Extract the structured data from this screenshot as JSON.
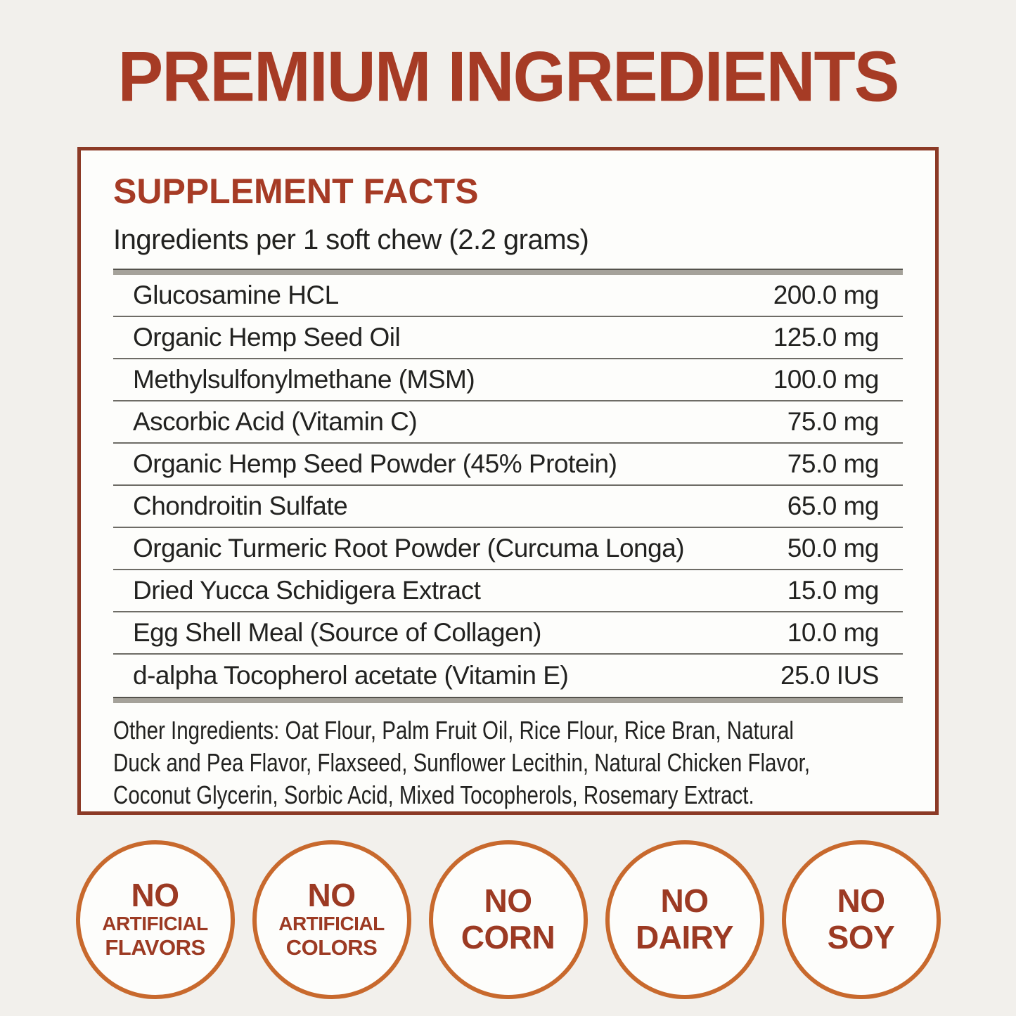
{
  "page": {
    "title": "PREMIUM INGREDIENTS"
  },
  "panel": {
    "heading": "SUPPLEMENT FACTS",
    "serving_line": "Ingredients per 1 soft chew (2.2 grams)",
    "ingredients": [
      {
        "name": "Glucosamine HCL",
        "amount": "200.0 mg"
      },
      {
        "name": "Organic Hemp Seed Oil",
        "amount": "125.0 mg"
      },
      {
        "name": "Methylsulfonylmethane (MSM)",
        "amount": "100.0 mg"
      },
      {
        "name": "Ascorbic Acid (Vitamin C)",
        "amount": "75.0 mg"
      },
      {
        "name": "Organic Hemp Seed Powder (45% Protein)",
        "amount": "75.0 mg"
      },
      {
        "name": "Chondroitin Sulfate",
        "amount": "65.0 mg"
      },
      {
        "name": "Organic Turmeric Root Powder (Curcuma Longa)",
        "amount": "50.0 mg"
      },
      {
        "name": "Dried Yucca Schidigera Extract",
        "amount": "15.0 mg"
      },
      {
        "name": "Egg Shell Meal (Source of Collagen)",
        "amount": "10.0 mg"
      },
      {
        "name": "d-alpha Tocopherol acetate (Vitamin E)",
        "amount": "25.0 IUS"
      }
    ],
    "other_ingredients_lines": [
      "Other Ingredients: Oat Flour, Palm Fruit Oil, Rice Flour, Rice Bran, Natural",
      "Duck and Pea Flavor, Flaxseed, Sunflower Lecithin, Natural Chicken Flavor,",
      "Coconut Glycerin, Sorbic Acid, Mixed Tocopherols, Rosemary Extract."
    ]
  },
  "badges": [
    {
      "lines": [
        "NO",
        "ARTIFICIAL",
        "FLAVORS"
      ]
    },
    {
      "lines": [
        "NO",
        "ARTIFICIAL",
        "COLORS"
      ]
    },
    {
      "lines": [
        "NO",
        "CORN"
      ]
    },
    {
      "lines": [
        "NO",
        "DAIRY"
      ]
    },
    {
      "lines": [
        "NO",
        "SOY"
      ]
    }
  ],
  "colors": {
    "background": "#f2f0ec",
    "panel_background": "#fdfdfb",
    "title_red": "#a63b25",
    "panel_border_brown": "#8c3a26",
    "table_text": "#222220",
    "thick_rule_gray": "#a5a29a",
    "thin_rule_gray": "#6e6c66",
    "badge_ring_orange": "#c8692d",
    "badge_text_red": "#9c3a23"
  }
}
